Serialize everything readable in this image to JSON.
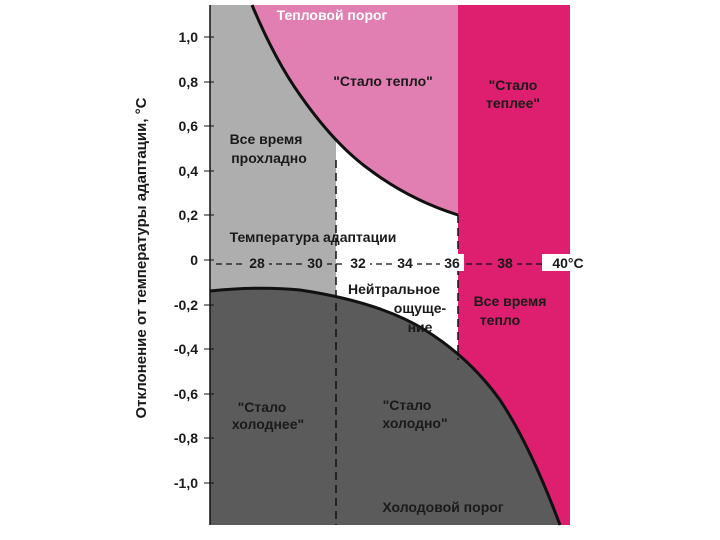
{
  "axis": {
    "y_title": "Отклонение от температуры адаптации, °С",
    "y_ticks": [
      "1,0",
      "0,8",
      "0,6",
      "0,4",
      "0,2",
      "0",
      "-0,2",
      "-0,4",
      "-0,6",
      "-0,8",
      "-1,0"
    ],
    "x_title": "Температура адаптации",
    "x_ticks": [
      "28",
      "30",
      "32",
      "34",
      "36",
      "38",
      "40°С"
    ]
  },
  "labels": {
    "heat_threshold": "Тепловой порог",
    "cold_threshold": "Холодовой порог",
    "became_warm": "\"Стало тепло\"",
    "warmer_l1": "\"Стало",
    "warmer_l2": "теплее\"",
    "cool_l1": "Все время",
    "cool_l2": "прохладно",
    "neutral_l1": "Нейтральное",
    "neutral_l2": "ощуще-",
    "neutral_l3": "ние",
    "warm_l1": "Все время",
    "warm_l2": "тепло",
    "colder_l1": "\"Стало",
    "colder_l2": "холоднее\"",
    "cold_l1": "\"Стало",
    "cold_l2": "холодно\""
  },
  "colors": {
    "pink_light": "#e27fb2",
    "magenta": "#de1e6e",
    "gray_light": "#aeaeae",
    "gray_dark": "#5b5b5b",
    "neutral": "#ffffff"
  }
}
